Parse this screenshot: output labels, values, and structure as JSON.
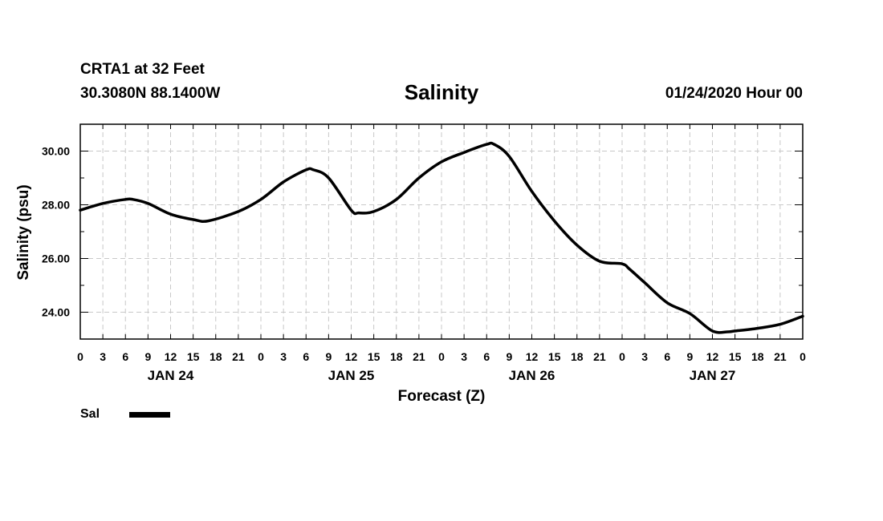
{
  "header": {
    "station": "CRTA1 at 32 Feet",
    "coords": "30.3080N 88.1400W",
    "forecast_time": "01/24/2020 Hour 00"
  },
  "chart_data": {
    "type": "line",
    "title": "Salinity",
    "xlabel": "Forecast (Z)",
    "ylabel": "Salinity (psu)",
    "ylim": [
      23,
      31
    ],
    "yticks": [
      24,
      26,
      28,
      30
    ],
    "ytick_labels": [
      "24.00",
      "26.00",
      "28.00",
      "30.00"
    ],
    "xlim": [
      0,
      96
    ],
    "xtick_labels": [
      "0",
      "3",
      "6",
      "9",
      "12",
      "15",
      "18",
      "21",
      "0",
      "3",
      "6",
      "9",
      "12",
      "15",
      "18",
      "21",
      "0",
      "3",
      "6",
      "9",
      "12",
      "15",
      "18",
      "21",
      "0",
      "3",
      "6",
      "9",
      "12",
      "15",
      "18",
      "21",
      "0"
    ],
    "day_labels": [
      "JAN 24",
      "JAN 25",
      "JAN 26",
      "JAN 27"
    ],
    "grid": true,
    "series": [
      {
        "name": "Sal",
        "color": "#000000",
        "x": [
          0,
          3,
          6,
          7,
          9,
          12,
          15,
          17,
          21,
          24,
          27,
          30,
          31,
          33,
          36,
          37,
          39,
          42,
          45,
          48,
          51,
          54,
          55,
          57,
          60,
          63,
          66,
          69,
          72,
          73,
          75,
          78,
          81,
          84,
          86,
          87,
          90,
          93,
          96
        ],
        "values": [
          27.8,
          28.05,
          28.2,
          28.2,
          28.05,
          27.65,
          27.45,
          27.4,
          27.75,
          28.2,
          28.85,
          29.3,
          29.3,
          29.0,
          27.8,
          27.7,
          27.75,
          28.2,
          29.0,
          29.6,
          29.95,
          30.25,
          30.25,
          29.8,
          28.5,
          27.4,
          26.5,
          25.9,
          25.8,
          25.6,
          25.1,
          24.35,
          23.95,
          23.3,
          23.27,
          23.3,
          23.4,
          23.55,
          23.85
        ]
      }
    ]
  },
  "legend": {
    "label": "Sal"
  }
}
